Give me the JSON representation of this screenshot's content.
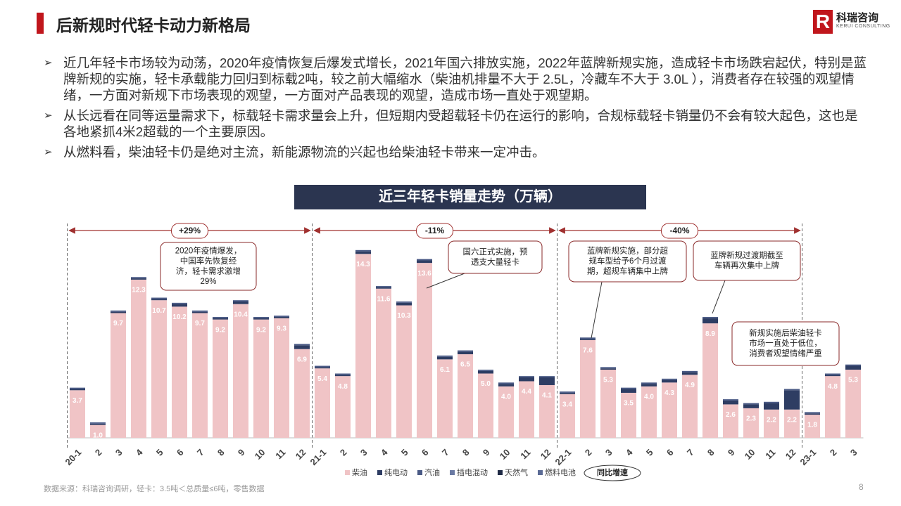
{
  "header": {
    "title": "后新规时代轻卡动力新格局",
    "logo_cn": "科瑞咨询",
    "logo_en": "KERUI CONSULTING"
  },
  "bullets": [
    "近几年轻卡市场较为动荡，2020年疫情恢复后爆发式增长，2021年国六排放实施，2022年蓝牌新规实施，造成轻卡市场跌宕起伏，特别是蓝牌新规的实施，轻卡承载能力回归到标载2吨，较之前大幅缩水（柴油机排量不大于 2.5L，冷藏车不大于 3.0L ），消费者存在较强的观望情绪，一方面对新规下市场表现的观望，一方面对产品表现的观望，造成市场一直处于观望期。",
    "从长远看在同等运量需求下，标载轻卡需求量会上升，但短期内受超载轻卡仍在运行的影响，合规标载轻卡销量仍不会有较大起色，这也是各地紧抓4米2超载的一个主要原因。",
    "从燃料看，柴油轻卡仍是绝对主流，新能源物流的兴起也给柴油轻卡带来一定冲击。"
  ],
  "chart_data": {
    "type": "stacked-bar",
    "title": "近三年轻卡销量走势（万辆）",
    "categories": [
      "20-1",
      "2",
      "3",
      "4",
      "5",
      "6",
      "7",
      "8",
      "9",
      "10",
      "11",
      "12",
      "21-1",
      "2",
      "3",
      "4",
      "5",
      "6",
      "7",
      "8",
      "9",
      "10",
      "11",
      "12",
      "22-1",
      "2",
      "3",
      "4",
      "5",
      "6",
      "7",
      "8",
      "9",
      "10",
      "11",
      "12",
      "23-1",
      "2",
      "3"
    ],
    "series": [
      {
        "name": "柴油",
        "color": "#f0c4c6",
        "values": [
          3.7,
          1.0,
          9.7,
          12.3,
          10.7,
          10.2,
          9.7,
          9.2,
          10.4,
          9.2,
          9.3,
          6.9,
          5.4,
          4.8,
          14.3,
          11.6,
          10.3,
          13.6,
          6.1,
          6.5,
          5.0,
          4.0,
          4.4,
          4.1,
          3.4,
          7.6,
          5.3,
          3.5,
          4.0,
          4.3,
          4.9,
          8.9,
          2.6,
          2.3,
          2.2,
          2.2,
          1.8,
          4.8,
          5.3
        ],
        "value_labels": [
          "3.7",
          "1.0",
          "9.7",
          "12.3",
          "10.7",
          "10.2",
          "9.7",
          "9.2",
          "10.4",
          "9.2",
          "9.3",
          "6.9",
          "5.4",
          "4.8",
          "14.3",
          "11.6",
          "10.3",
          "13.6",
          "6.1",
          "6.5",
          "5.0",
          "4.0",
          "4.4",
          "4.1",
          "3.4",
          "7.6",
          "5.3",
          "3.5",
          "4.0",
          "4.3",
          "4.9",
          "8.9",
          "2.6",
          "2.3",
          "2.2",
          "2.2",
          "1.8",
          "4.8",
          "5.3"
        ]
      },
      {
        "name": "纯电动",
        "color": "#2e3d63",
        "values": [
          0.1,
          0.1,
          0.1,
          0.1,
          0.1,
          0.2,
          0.1,
          0.1,
          0.2,
          0.1,
          0.1,
          0.3,
          0.1,
          0.1,
          0.2,
          0.1,
          0.2,
          0.2,
          0.2,
          0.2,
          0.2,
          0.2,
          0.3,
          0.6,
          0.1,
          0.1,
          0.1,
          0.3,
          0.2,
          0.2,
          0.2,
          0.4,
          0.3,
          0.3,
          0.5,
          1.5,
          0.1,
          0.1,
          0.3
        ]
      },
      {
        "name": "汽油",
        "color": "#4a5a85",
        "values": [
          0.1,
          0.1,
          0.1,
          0.1,
          0.1,
          0.1,
          0.1,
          0.1,
          0.1,
          0.1,
          0.1,
          0.1,
          0.1,
          0.1,
          0.1,
          0.1,
          0.1,
          0.1,
          0.1,
          0.1,
          0.1,
          0.1,
          0.1,
          0.1,
          0.1,
          0.1,
          0.1,
          0.1,
          0.1,
          0.1,
          0.1,
          0.1,
          0.1,
          0.1,
          0.1,
          0.1,
          0.1,
          0.1,
          0.1
        ]
      },
      {
        "name": "插电混动",
        "color": "#6a7aa3",
        "values": [
          0,
          0,
          0,
          0,
          0,
          0,
          0,
          0,
          0,
          0,
          0,
          0,
          0,
          0,
          0,
          0,
          0,
          0,
          0,
          0,
          0,
          0,
          0,
          0,
          0,
          0,
          0,
          0,
          0,
          0,
          0,
          0,
          0,
          0,
          0,
          0,
          0,
          0,
          0
        ]
      },
      {
        "name": "天然气",
        "color": "#1f2a45",
        "values": [
          0,
          0,
          0,
          0,
          0,
          0,
          0,
          0,
          0,
          0,
          0,
          0,
          0,
          0,
          0,
          0,
          0,
          0,
          0,
          0,
          0,
          0,
          0,
          0,
          0,
          0,
          0,
          0,
          0,
          0,
          0,
          0,
          0,
          0,
          0,
          0,
          0,
          0,
          0
        ]
      },
      {
        "name": "燃料电池",
        "color": "#5b6b95",
        "values": [
          0,
          0,
          0,
          0,
          0,
          0,
          0,
          0,
          0,
          0,
          0,
          0,
          0,
          0,
          0,
          0,
          0,
          0,
          0,
          0,
          0,
          0,
          0,
          0,
          0,
          0,
          0,
          0,
          0,
          0,
          0,
          0,
          0,
          0,
          0,
          0,
          0,
          0,
          0
        ]
      }
    ],
    "growth_labels": [
      "+29%",
      "-11%",
      "-40%"
    ],
    "growth_legend": "同比增速",
    "callouts": [
      [
        "2020年疫情爆发，",
        "中国率先恢复经",
        "济，轻卡需求激增",
        "29%"
      ],
      [
        "国六正式实施，预",
        "透支大量轻卡"
      ],
      [
        "蓝牌新规实施，部分超",
        "规车型给予6个月过渡",
        "期，超规车辆集中上牌"
      ],
      [
        "蓝牌新规过渡期截至",
        "车辆再次集中上牌"
      ],
      [
        "新规实施后柴油轻卡",
        "市场一直处于低位，",
        "消费者观望情绪严重"
      ]
    ]
  },
  "footer": {
    "source": "数据来源：科瑞咨询调研，轻卡：3.5吨＜总质量≤6吨，零售数据",
    "page": "8"
  }
}
